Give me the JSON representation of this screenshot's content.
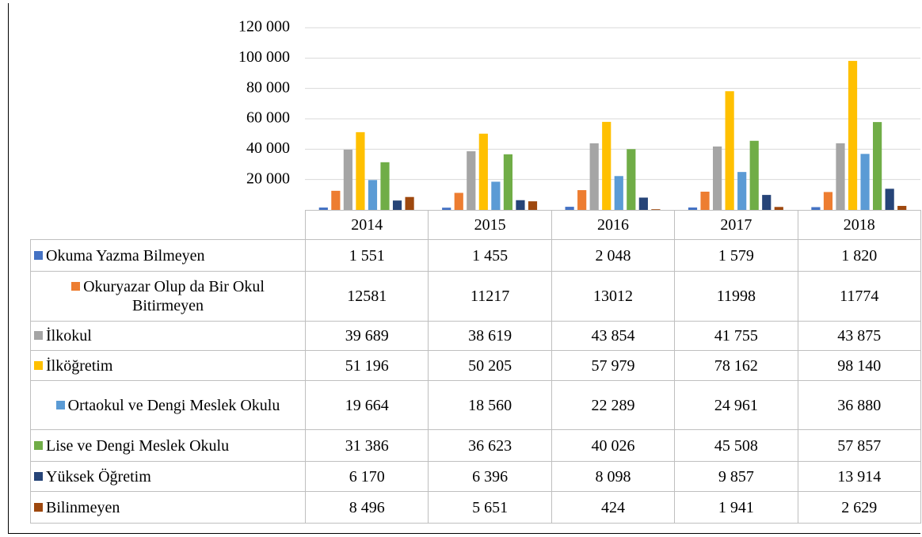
{
  "chart_data": {
    "type": "bar",
    "categories": [
      "2014",
      "2015",
      "2016",
      "2017",
      "2018"
    ],
    "ylim": [
      0,
      120000
    ],
    "yticks": [
      {
        "value": 20000,
        "label": "20 000"
      },
      {
        "value": 40000,
        "label": "40 000"
      },
      {
        "value": 60000,
        "label": "60 000"
      },
      {
        "value": 80000,
        "label": "80 000"
      },
      {
        "value": 100000,
        "label": "100 000"
      },
      {
        "value": 120000,
        "label": "120 000"
      }
    ],
    "grid": true,
    "series": [
      {
        "name": "Okuma Yazma Bilmeyen",
        "color": "#4472c4",
        "values": [
          1551,
          1455,
          2048,
          1579,
          1820
        ],
        "value_labels": [
          "1 551",
          "1 455",
          "2 048",
          "1 579",
          "1 820"
        ]
      },
      {
        "name": "Okuryazar Olup da Bir Okul Bitirmeyen",
        "color": "#ed7d31",
        "values": [
          12581,
          11217,
          13012,
          11998,
          11774
        ],
        "value_labels": [
          "12581",
          "11217",
          "13012",
          "11998",
          "11774"
        ]
      },
      {
        "name": "İlkokul",
        "color": "#a5a5a5",
        "values": [
          39689,
          38619,
          43854,
          41755,
          43875
        ],
        "value_labels": [
          "39 689",
          "38 619",
          "43 854",
          "41 755",
          "43 875"
        ]
      },
      {
        "name": "İlköğretim",
        "color": "#ffc000",
        "values": [
          51196,
          50205,
          57979,
          78162,
          98140
        ],
        "value_labels": [
          "51 196",
          "50 205",
          "57 979",
          "78 162",
          "98 140"
        ]
      },
      {
        "name": "Ortaokul ve Dengi Meslek Okulu",
        "color": "#5b9bd5",
        "values": [
          19664,
          18560,
          22289,
          24961,
          36880
        ],
        "value_labels": [
          "19 664",
          "18 560",
          "22 289",
          "24 961",
          "36 880"
        ]
      },
      {
        "name": "Lise ve Dengi Meslek Okulu",
        "color": "#70ad47",
        "values": [
          31386,
          36623,
          40026,
          45508,
          57857
        ],
        "value_labels": [
          "31 386",
          "36 623",
          "40 026",
          "45 508",
          "57 857"
        ]
      },
      {
        "name": "Yüksek Öğretim",
        "color": "#264478",
        "values": [
          6170,
          6396,
          8098,
          9857,
          13914
        ],
        "value_labels": [
          "6 170",
          "6 396",
          "8 098",
          "9 857",
          "13 914"
        ]
      },
      {
        "name": "Bilinmeyen",
        "color": "#9e480e",
        "values": [
          8496,
          5651,
          424,
          1941,
          2629
        ],
        "value_labels": [
          "8 496",
          "5 651",
          "424",
          "1 941",
          "2 629"
        ]
      }
    ]
  }
}
